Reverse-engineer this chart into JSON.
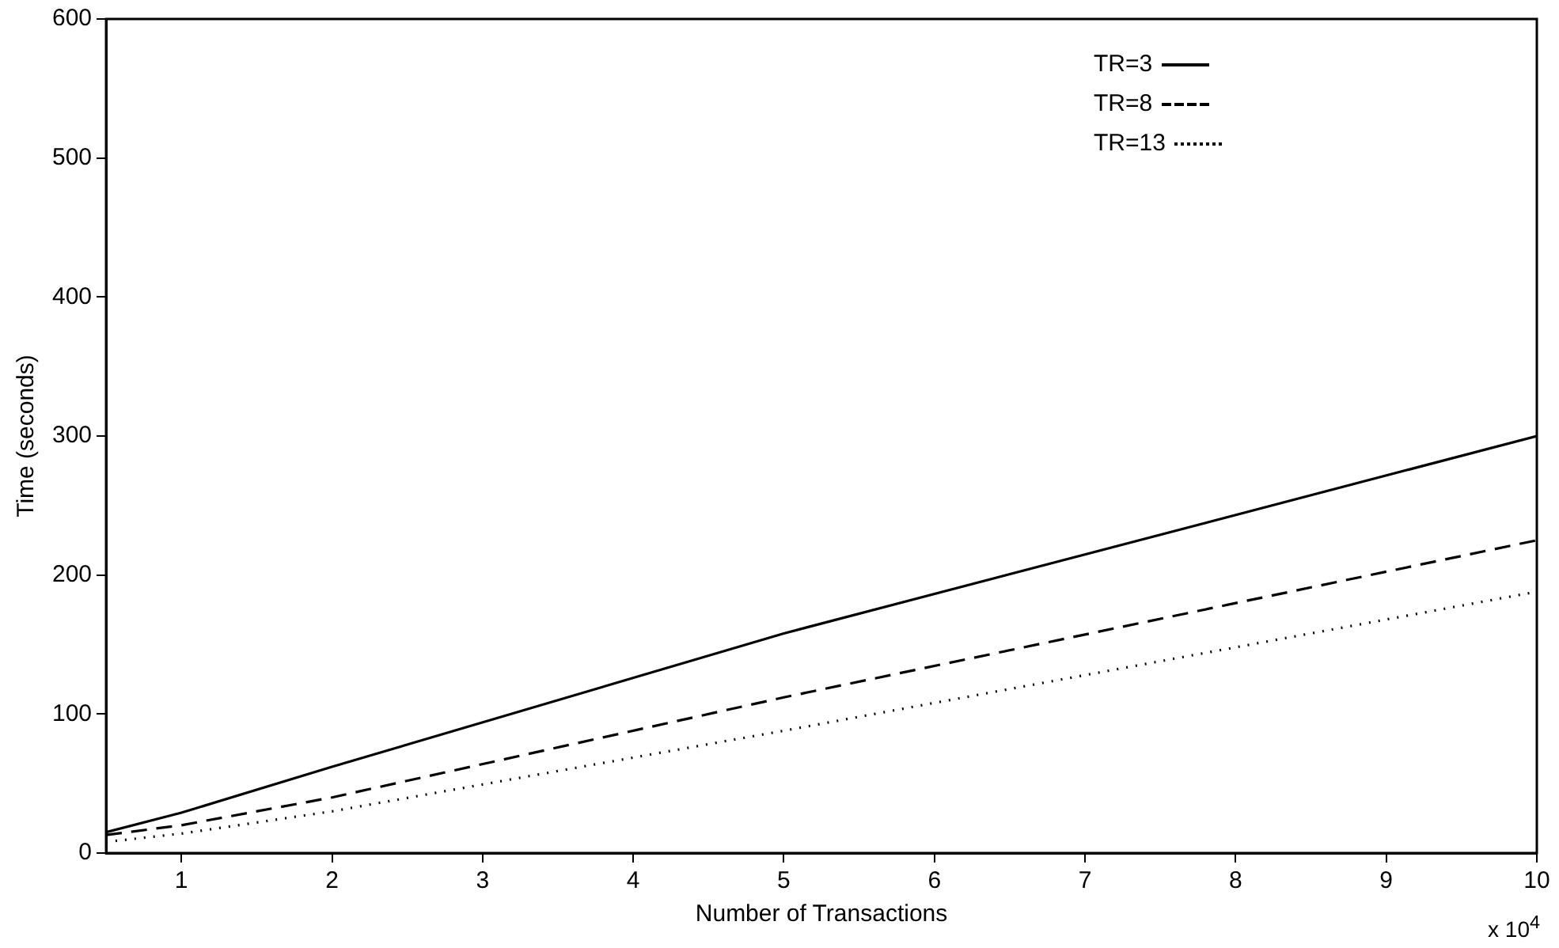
{
  "chart_data": {
    "type": "line",
    "xlabel": "Number of Transactions",
    "ylabel": "Time (seconds)",
    "xlim": [
      0.5,
      10
    ],
    "xticks": [
      1,
      2,
      3,
      4,
      5,
      6,
      7,
      8,
      9,
      10
    ],
    "ylim": [
      0,
      600
    ],
    "yticks": [
      0,
      100,
      200,
      300,
      400,
      500,
      600
    ],
    "grid": false,
    "legend": "top right",
    "marker": "none",
    "annotations": [
      "x 10$^{4}$"
    ],
    "series": [
      {
        "name": "TR=3",
        "color": "#000000",
        "line_style": "solid",
        "x": [
          0.5,
          1,
          2,
          5,
          10
        ],
        "values": [
          15,
          29,
          62,
          158,
          300
        ]
      },
      {
        "name": "TR=8",
        "color": "#000000",
        "line_style": "dashed",
        "x": [
          0.5,
          1,
          2,
          5,
          10
        ],
        "values": [
          13,
          20,
          40,
          112,
          225
        ]
      },
      {
        "name": "TR=13",
        "color": "#000000",
        "line_style": "dotted",
        "x": [
          0.5,
          1,
          2,
          5,
          10
        ],
        "values": [
          8,
          14,
          30,
          88,
          188
        ]
      }
    ]
  }
}
